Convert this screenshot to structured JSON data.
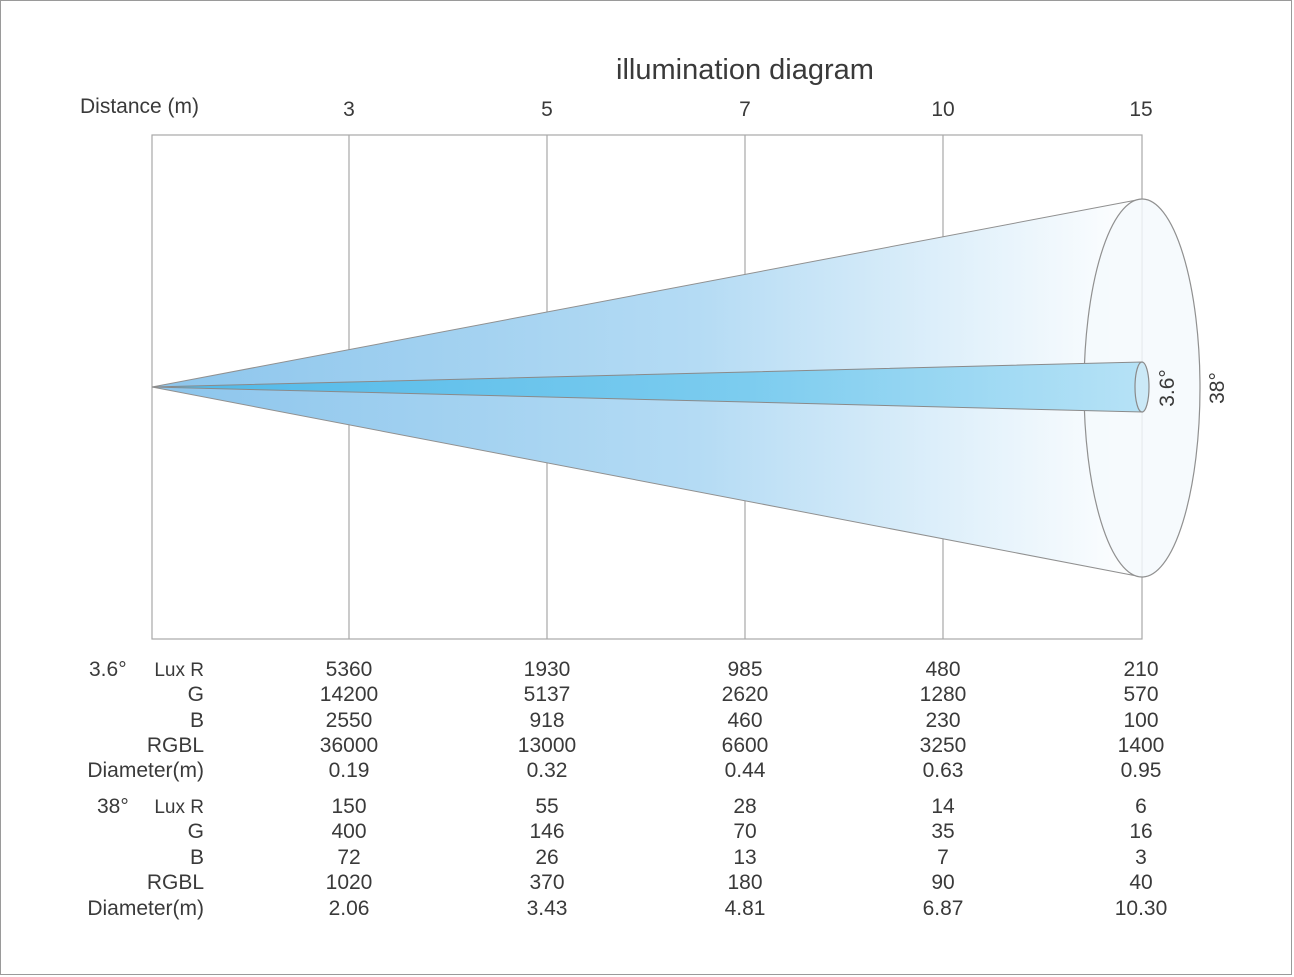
{
  "title": "illumination diagram",
  "distance_label": "Distance (m)",
  "distances": [
    "3",
    "5",
    "7",
    "10",
    "15"
  ],
  "angles": {
    "narrow": "3.6°",
    "wide": "38°"
  },
  "tables": [
    {
      "angle": "3.6°",
      "rows": [
        {
          "label": "Lux R",
          "values": [
            "5360",
            "1930",
            "985",
            "480",
            "210"
          ]
        },
        {
          "label": "G",
          "values": [
            "14200",
            "5137",
            "2620",
            "1280",
            "570"
          ]
        },
        {
          "label": "B",
          "values": [
            "2550",
            "918",
            "460",
            "230",
            "100"
          ]
        },
        {
          "label": "RGBL",
          "values": [
            "36000",
            "13000",
            "6600",
            "3250",
            "1400"
          ]
        },
        {
          "label": "Diameter(m)",
          "values": [
            "0.19",
            "0.32",
            "0.44",
            "0.63",
            "0.95"
          ]
        }
      ]
    },
    {
      "angle": "38°",
      "rows": [
        {
          "label": "Lux R",
          "values": [
            "150",
            "55",
            "28",
            "14",
            "6"
          ]
        },
        {
          "label": "G",
          "values": [
            "400",
            "146",
            "70",
            "35",
            "16"
          ]
        },
        {
          "label": "B",
          "values": [
            "72",
            "26",
            "13",
            "7",
            "3"
          ]
        },
        {
          "label": "RGBL",
          "values": [
            "1020",
            "370",
            "180",
            "90",
            "40"
          ]
        },
        {
          "label": "Diameter(m)",
          "values": [
            "2.06",
            "3.43",
            "4.81",
            "6.87",
            "10.30"
          ]
        }
      ]
    }
  ],
  "colors": {
    "beam_wide_start": "#9fcdee",
    "beam_wide_end": "#ffffff",
    "beam_narrow_start": "#5ec0ea",
    "beam_narrow_end": "#b3e0f5",
    "grid_line": "#a8a8a8",
    "text": "#3a3a3a"
  }
}
